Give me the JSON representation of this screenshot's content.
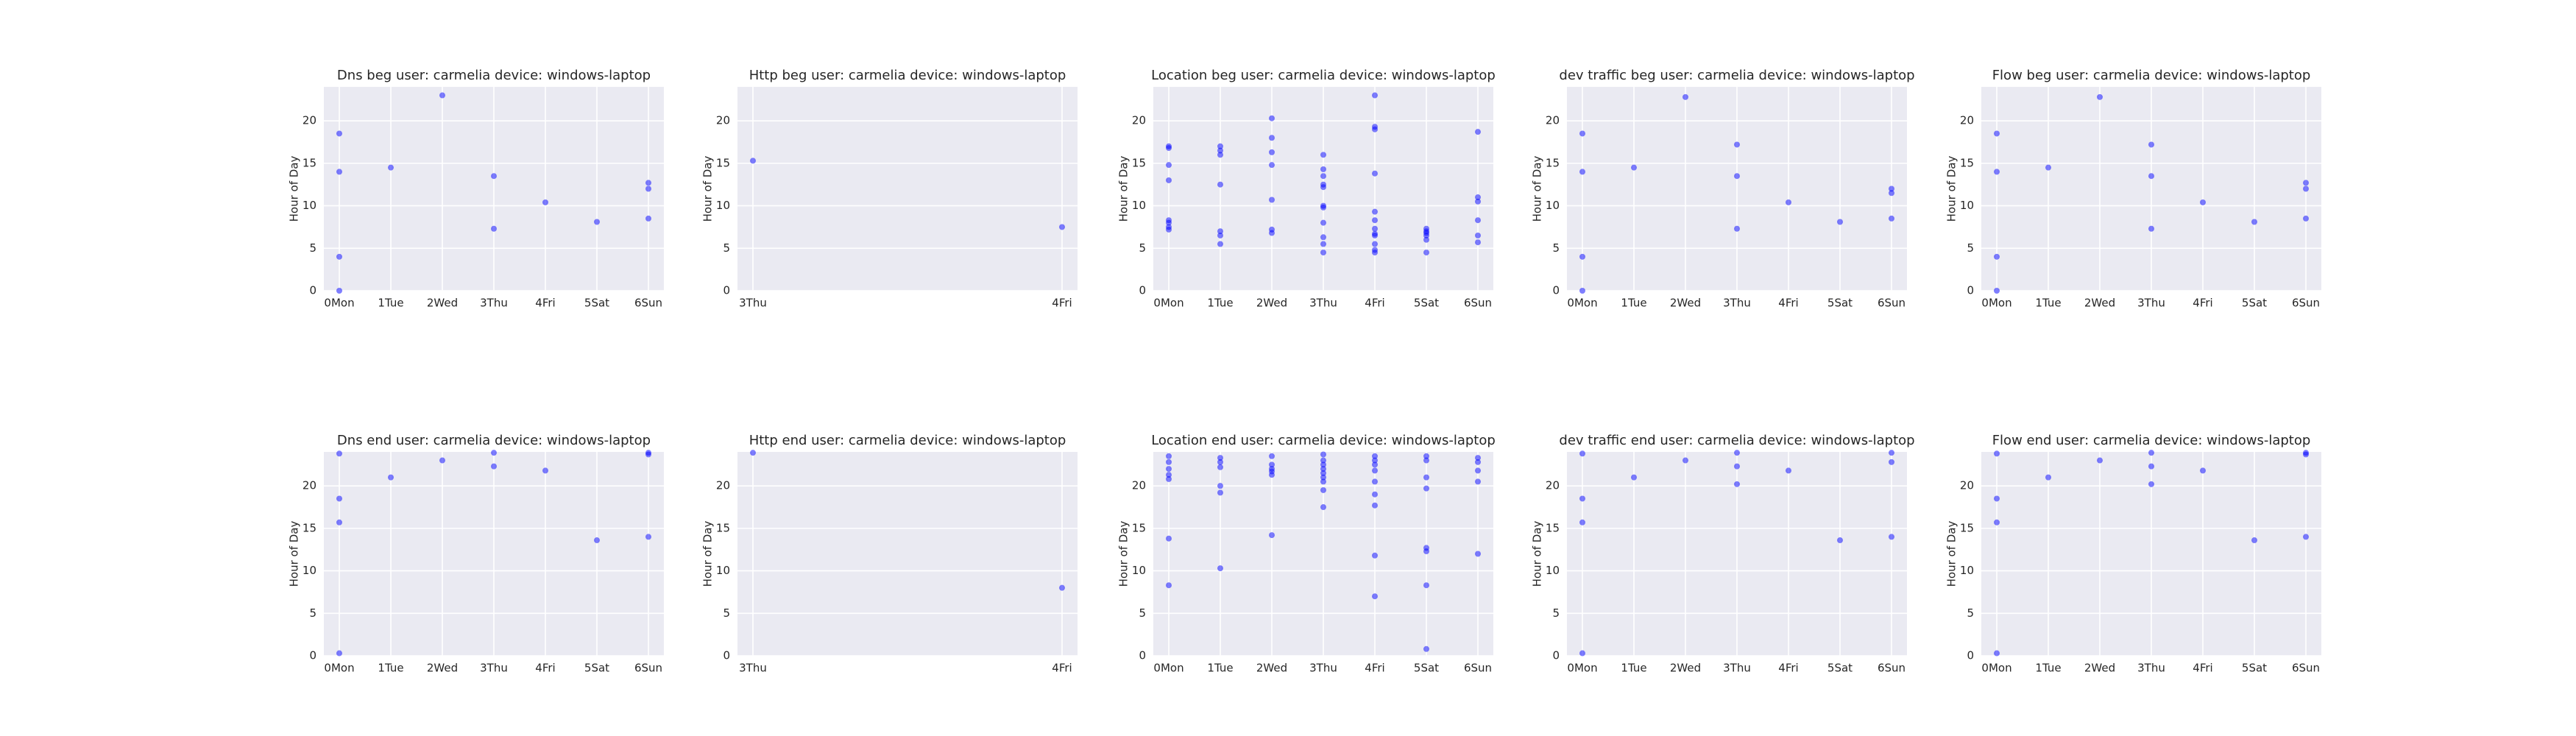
{
  "chart_data": [
    {
      "type": "scatter",
      "title": "Dns beg user: carmelia device: windows-laptop",
      "ylabel": "Hour of Day",
      "color": "#0000ff",
      "grid": true,
      "xlim": [
        -0.3,
        6.3
      ],
      "xticks": [
        {
          "value": 0,
          "label": "0Mon"
        },
        {
          "value": 1,
          "label": "1Tue"
        },
        {
          "value": 2,
          "label": "2Wed"
        },
        {
          "value": 3,
          "label": "3Thu"
        },
        {
          "value": 4,
          "label": "4Fri"
        },
        {
          "value": 5,
          "label": "5Sat"
        },
        {
          "value": 6,
          "label": "6Sun"
        }
      ],
      "ylim": [
        0,
        24
      ],
      "yticks": [
        0,
        5,
        10,
        15,
        20
      ],
      "x": [
        0,
        0,
        0,
        0,
        1,
        2,
        3,
        3,
        4,
        5,
        6,
        6,
        6
      ],
      "y": [
        18.5,
        14,
        4,
        0,
        14.5,
        23,
        13.5,
        7.3,
        10.4,
        8.1,
        12.7,
        12,
        8.5
      ]
    },
    {
      "type": "scatter",
      "title": "Http beg user: carmelia device: windows-laptop",
      "ylabel": "Hour of Day",
      "color": "#0000ff",
      "grid": true,
      "xlim": [
        2.95,
        4.05
      ],
      "xticks": [
        {
          "value": 3,
          "label": "3Thu"
        },
        {
          "value": 4,
          "label": "4Fri"
        }
      ],
      "ylim": [
        0,
        24
      ],
      "yticks": [
        0,
        5,
        10,
        15,
        20
      ],
      "x": [
        3,
        4
      ],
      "y": [
        15.3,
        7.5
      ]
    },
    {
      "type": "scatter",
      "title": "Location beg user: carmelia device: windows-laptop",
      "ylabel": "Hour of Day",
      "color": "#0000ff",
      "grid": true,
      "xlim": [
        -0.3,
        6.3
      ],
      "xticks": [
        {
          "value": 0,
          "label": "0Mon"
        },
        {
          "value": 1,
          "label": "1Tue"
        },
        {
          "value": 2,
          "label": "2Wed"
        },
        {
          "value": 3,
          "label": "3Thu"
        },
        {
          "value": 4,
          "label": "4Fri"
        },
        {
          "value": 5,
          "label": "5Sat"
        },
        {
          "value": 6,
          "label": "6Sun"
        }
      ],
      "ylim": [
        0,
        24
      ],
      "yticks": [
        0,
        5,
        10,
        15,
        20
      ],
      "x": [
        0,
        0,
        0,
        0,
        0,
        0,
        0,
        0,
        1,
        1,
        1,
        1,
        1,
        1,
        1,
        2,
        2,
        2,
        2,
        2,
        2,
        2,
        3,
        3,
        3,
        3,
        3,
        3,
        3,
        3,
        3,
        3,
        3,
        4,
        4,
        4,
        4,
        4,
        4,
        4,
        4,
        4,
        4,
        4,
        4,
        5,
        5,
        5,
        5,
        5,
        5,
        6,
        6,
        6,
        6,
        6,
        6
      ],
      "y": [
        17,
        16.8,
        14.8,
        13,
        8.3,
        8,
        7.5,
        7.2,
        17,
        16.5,
        16,
        12.5,
        7,
        6.5,
        5.5,
        20.3,
        18,
        16.3,
        14.8,
        10.7,
        7.2,
        6.8,
        16,
        14.3,
        13.5,
        12.5,
        12.2,
        10,
        9.8,
        8,
        6.3,
        5.5,
        4.5,
        23,
        19.3,
        19,
        13.8,
        9.3,
        8.3,
        7.3,
        6.7,
        6.5,
        5.5,
        4.8,
        4.5,
        7.3,
        7,
        6.8,
        6.5,
        6,
        4.5,
        18.7,
        11,
        10.5,
        8.3,
        6.5,
        5.7
      ]
    },
    {
      "type": "scatter",
      "title": "dev traffic beg user: carmelia device: windows-laptop",
      "ylabel": "Hour of Day",
      "color": "#0000ff",
      "grid": true,
      "xlim": [
        -0.3,
        6.3
      ],
      "xticks": [
        {
          "value": 0,
          "label": "0Mon"
        },
        {
          "value": 1,
          "label": "1Tue"
        },
        {
          "value": 2,
          "label": "2Wed"
        },
        {
          "value": 3,
          "label": "3Thu"
        },
        {
          "value": 4,
          "label": "4Fri"
        },
        {
          "value": 5,
          "label": "5Sat"
        },
        {
          "value": 6,
          "label": "6Sun"
        }
      ],
      "ylim": [
        0,
        24
      ],
      "yticks": [
        0,
        5,
        10,
        15,
        20
      ],
      "x": [
        0,
        0,
        0,
        0,
        1,
        2,
        3,
        3,
        3,
        4,
        5,
        6,
        6,
        6
      ],
      "y": [
        18.5,
        14,
        4,
        0,
        14.5,
        22.8,
        17.2,
        13.5,
        7.3,
        10.4,
        8.1,
        12,
        11.5,
        8.5
      ]
    },
    {
      "type": "scatter",
      "title": "Flow beg user: carmelia device: windows-laptop",
      "ylabel": "Hour of Day",
      "color": "#0000ff",
      "grid": true,
      "xlim": [
        -0.3,
        6.3
      ],
      "xticks": [
        {
          "value": 0,
          "label": "0Mon"
        },
        {
          "value": 1,
          "label": "1Tue"
        },
        {
          "value": 2,
          "label": "2Wed"
        },
        {
          "value": 3,
          "label": "3Thu"
        },
        {
          "value": 4,
          "label": "4Fri"
        },
        {
          "value": 5,
          "label": "5Sat"
        },
        {
          "value": 6,
          "label": "6Sun"
        }
      ],
      "ylim": [
        0,
        24
      ],
      "yticks": [
        0,
        5,
        10,
        15,
        20
      ],
      "x": [
        0,
        0,
        0,
        0,
        1,
        2,
        3,
        3,
        3,
        4,
        5,
        6,
        6,
        6
      ],
      "y": [
        18.5,
        14,
        4,
        0,
        14.5,
        22.8,
        17.2,
        13.5,
        7.3,
        10.4,
        8.1,
        12.7,
        12,
        8.5
      ]
    },
    {
      "type": "scatter",
      "title": "Dns end user: carmelia device: windows-laptop",
      "ylabel": "Hour of Day",
      "color": "#0000ff",
      "grid": true,
      "xlim": [
        -0.3,
        6.3
      ],
      "xticks": [
        {
          "value": 0,
          "label": "0Mon"
        },
        {
          "value": 1,
          "label": "1Tue"
        },
        {
          "value": 2,
          "label": "2Wed"
        },
        {
          "value": 3,
          "label": "3Thu"
        },
        {
          "value": 4,
          "label": "4Fri"
        },
        {
          "value": 5,
          "label": "5Sat"
        },
        {
          "value": 6,
          "label": "6Sun"
        }
      ],
      "ylim": [
        0,
        24
      ],
      "yticks": [
        0,
        5,
        10,
        15,
        20
      ],
      "x": [
        0,
        0,
        0,
        0,
        1,
        2,
        3,
        3,
        4,
        5,
        6,
        6,
        6
      ],
      "y": [
        23.8,
        18.5,
        15.7,
        0.3,
        21,
        23,
        23.9,
        22.3,
        21.8,
        13.6,
        23.9,
        23.7,
        14
      ]
    },
    {
      "type": "scatter",
      "title": "Http end user: carmelia device: windows-laptop",
      "ylabel": "Hour of Day",
      "color": "#0000ff",
      "grid": true,
      "xlim": [
        2.95,
        4.05
      ],
      "xticks": [
        {
          "value": 3,
          "label": "3Thu"
        },
        {
          "value": 4,
          "label": "4Fri"
        }
      ],
      "ylim": [
        0,
        24
      ],
      "yticks": [
        0,
        5,
        10,
        15,
        20
      ],
      "x": [
        3,
        4
      ],
      "y": [
        23.9,
        8
      ]
    },
    {
      "type": "scatter",
      "title": "Location end user: carmelia device: windows-laptop",
      "ylabel": "Hour of Day",
      "color": "#0000ff",
      "grid": true,
      "xlim": [
        -0.3,
        6.3
      ],
      "xticks": [
        {
          "value": 0,
          "label": "0Mon"
        },
        {
          "value": 1,
          "label": "1Tue"
        },
        {
          "value": 2,
          "label": "2Wed"
        },
        {
          "value": 3,
          "label": "3Thu"
        },
        {
          "value": 4,
          "label": "4Fri"
        },
        {
          "value": 5,
          "label": "5Sat"
        },
        {
          "value": 6,
          "label": "6Sun"
        }
      ],
      "ylim": [
        0,
        24
      ],
      "yticks": [
        0,
        5,
        10,
        15,
        20
      ],
      "x": [
        0,
        0,
        0,
        0,
        0,
        0,
        0,
        1,
        1,
        1,
        1,
        1,
        1,
        2,
        2,
        2,
        2,
        2,
        2,
        3,
        3,
        3,
        3,
        3,
        3,
        3,
        3,
        3,
        4,
        4,
        4,
        4,
        4,
        4,
        4,
        4,
        4,
        5,
        5,
        5,
        5,
        5,
        5,
        5,
        5,
        6,
        6,
        6,
        6,
        6
      ],
      "y": [
        23.5,
        22.8,
        22,
        21.3,
        20.8,
        13.8,
        8.3,
        23.3,
        22.8,
        22.2,
        20,
        19.2,
        10.3,
        23.5,
        22.5,
        22,
        21.7,
        21.3,
        14.2,
        23.7,
        23,
        22.5,
        22,
        21.5,
        21,
        20.5,
        19.5,
        17.5,
        23.5,
        23,
        22.5,
        21.8,
        20.5,
        19,
        17.7,
        11.8,
        7,
        23.5,
        23,
        21,
        19.7,
        12.7,
        12.3,
        8.3,
        0.8,
        23.3,
        22.8,
        21.8,
        20.5,
        12
      ]
    },
    {
      "type": "scatter",
      "title": "dev traffic end user: carmelia device: windows-laptop",
      "ylabel": "Hour of Day",
      "color": "#0000ff",
      "grid": true,
      "xlim": [
        -0.3,
        6.3
      ],
      "xticks": [
        {
          "value": 0,
          "label": "0Mon"
        },
        {
          "value": 1,
          "label": "1Tue"
        },
        {
          "value": 2,
          "label": "2Wed"
        },
        {
          "value": 3,
          "label": "3Thu"
        },
        {
          "value": 4,
          "label": "4Fri"
        },
        {
          "value": 5,
          "label": "5Sat"
        },
        {
          "value": 6,
          "label": "6Sun"
        }
      ],
      "ylim": [
        0,
        24
      ],
      "yticks": [
        0,
        5,
        10,
        15,
        20
      ],
      "x": [
        0,
        0,
        0,
        0,
        1,
        2,
        3,
        3,
        3,
        4,
        5,
        6,
        6,
        6
      ],
      "y": [
        23.8,
        18.5,
        15.7,
        0.3,
        21,
        23,
        23.9,
        22.3,
        20.2,
        21.8,
        13.6,
        23.9,
        22.8,
        14
      ]
    },
    {
      "type": "scatter",
      "title": "Flow end user: carmelia device: windows-laptop",
      "ylabel": "Hour of Day",
      "color": "#0000ff",
      "grid": true,
      "xlim": [
        -0.3,
        6.3
      ],
      "xticks": [
        {
          "value": 0,
          "label": "0Mon"
        },
        {
          "value": 1,
          "label": "1Tue"
        },
        {
          "value": 2,
          "label": "2Wed"
        },
        {
          "value": 3,
          "label": "3Thu"
        },
        {
          "value": 4,
          "label": "4Fri"
        },
        {
          "value": 5,
          "label": "5Sat"
        },
        {
          "value": 6,
          "label": "6Sun"
        }
      ],
      "ylim": [
        0,
        24
      ],
      "yticks": [
        0,
        5,
        10,
        15,
        20
      ],
      "x": [
        0,
        0,
        0,
        0,
        1,
        2,
        3,
        3,
        3,
        4,
        5,
        6,
        6,
        6
      ],
      "y": [
        23.8,
        18.5,
        15.7,
        0.3,
        21,
        23,
        23.9,
        22.3,
        20.2,
        21.8,
        13.6,
        23.9,
        23.7,
        14
      ]
    }
  ]
}
